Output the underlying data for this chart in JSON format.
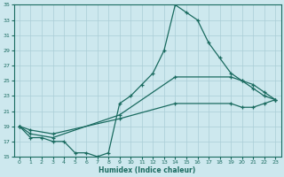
{
  "title": "",
  "xlabel": "Humidex (Indice chaleur)",
  "ylabel": "",
  "xlim": [
    -0.5,
    23.5
  ],
  "ylim": [
    15,
    35
  ],
  "yticks": [
    15,
    17,
    19,
    21,
    23,
    25,
    27,
    29,
    31,
    33,
    35
  ],
  "xticks": [
    0,
    1,
    2,
    3,
    4,
    5,
    6,
    7,
    8,
    9,
    10,
    11,
    12,
    13,
    14,
    15,
    16,
    17,
    18,
    19,
    20,
    21,
    22,
    23
  ],
  "bg_color": "#cde8ee",
  "grid_color": "#aacdd6",
  "line_color": "#1a6b60",
  "line1_x": [
    0,
    1,
    2,
    3,
    4,
    5,
    6,
    7,
    8,
    9,
    10,
    11,
    12,
    13,
    14,
    15,
    16,
    17,
    18,
    19,
    20,
    21,
    22,
    23
  ],
  "line1_y": [
    19,
    17.5,
    17.5,
    17,
    17,
    15.5,
    15.5,
    15,
    15.5,
    22,
    23,
    24.5,
    26,
    29,
    35,
    34,
    33,
    30,
    28,
    26,
    25,
    24,
    23,
    22.5
  ],
  "line2_x": [
    0,
    1,
    3,
    9,
    14,
    19,
    20,
    21,
    22,
    23
  ],
  "line2_y": [
    19,
    18,
    17.5,
    20.5,
    25.5,
    25.5,
    25,
    24.5,
    23.5,
    22.5
  ],
  "line3_x": [
    0,
    1,
    3,
    9,
    14,
    19,
    20,
    21,
    22,
    23
  ],
  "line3_y": [
    19,
    18.5,
    18,
    20,
    22,
    22,
    21.5,
    21.5,
    22,
    22.5
  ]
}
